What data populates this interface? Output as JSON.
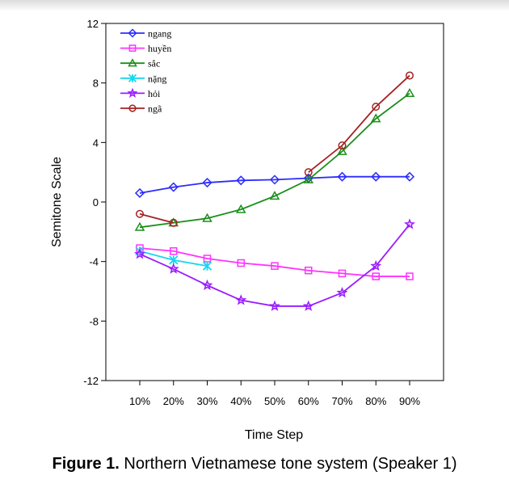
{
  "caption": {
    "label": "Figure 1.",
    "text": "Northern Vietnamese tone system (Speaker 1)"
  },
  "chart_data": {
    "type": "line",
    "title": "",
    "xlabel": "Time Step",
    "ylabel": "Semitone Scale",
    "categories": [
      "10%",
      "20%",
      "30%",
      "40%",
      "50%",
      "60%",
      "70%",
      "80%",
      "90%"
    ],
    "ylim": [
      -12,
      12
    ],
    "yticks": [
      12,
      8,
      4,
      0,
      -4,
      -8,
      -12
    ],
    "ytick_labels": [
      "12",
      "8",
      "4",
      "0",
      "-4",
      "-8",
      "-12"
    ],
    "grid": false,
    "legend_position": "top-left",
    "series": [
      {
        "name": "ngang",
        "color": "#2b2bff",
        "marker": "diamond",
        "values": [
          0.6,
          1.0,
          1.3,
          1.45,
          1.5,
          1.6,
          1.7,
          1.7,
          1.7
        ]
      },
      {
        "name": "huyền",
        "color": "#ff33ff",
        "marker": "square",
        "values": [
          -3.1,
          -3.3,
          -3.8,
          -4.1,
          -4.3,
          -4.6,
          -4.8,
          -5.0,
          -5.0
        ]
      },
      {
        "name": "sắc",
        "color": "#1a8f1a",
        "marker": "triangle",
        "values": [
          -1.7,
          -1.4,
          -1.1,
          -0.5,
          0.4,
          1.5,
          3.4,
          5.6,
          7.3
        ]
      },
      {
        "name": "nặng",
        "color": "#17d7ee",
        "marker": "x",
        "values": [
          -3.3,
          -3.9,
          -4.3,
          null,
          null,
          null,
          null,
          null,
          null
        ]
      },
      {
        "name": "hỏi",
        "color": "#9a1cff",
        "marker": "star",
        "values": [
          -3.5,
          -4.5,
          -5.6,
          -6.6,
          -7.0,
          -7.0,
          -6.1,
          -4.3,
          -1.5
        ]
      },
      {
        "name": "ngã",
        "color": "#a52121",
        "marker": "circle",
        "values": [
          -0.8,
          -1.4,
          null,
          null,
          null,
          2.0,
          3.8,
          6.4,
          8.5
        ]
      }
    ]
  }
}
